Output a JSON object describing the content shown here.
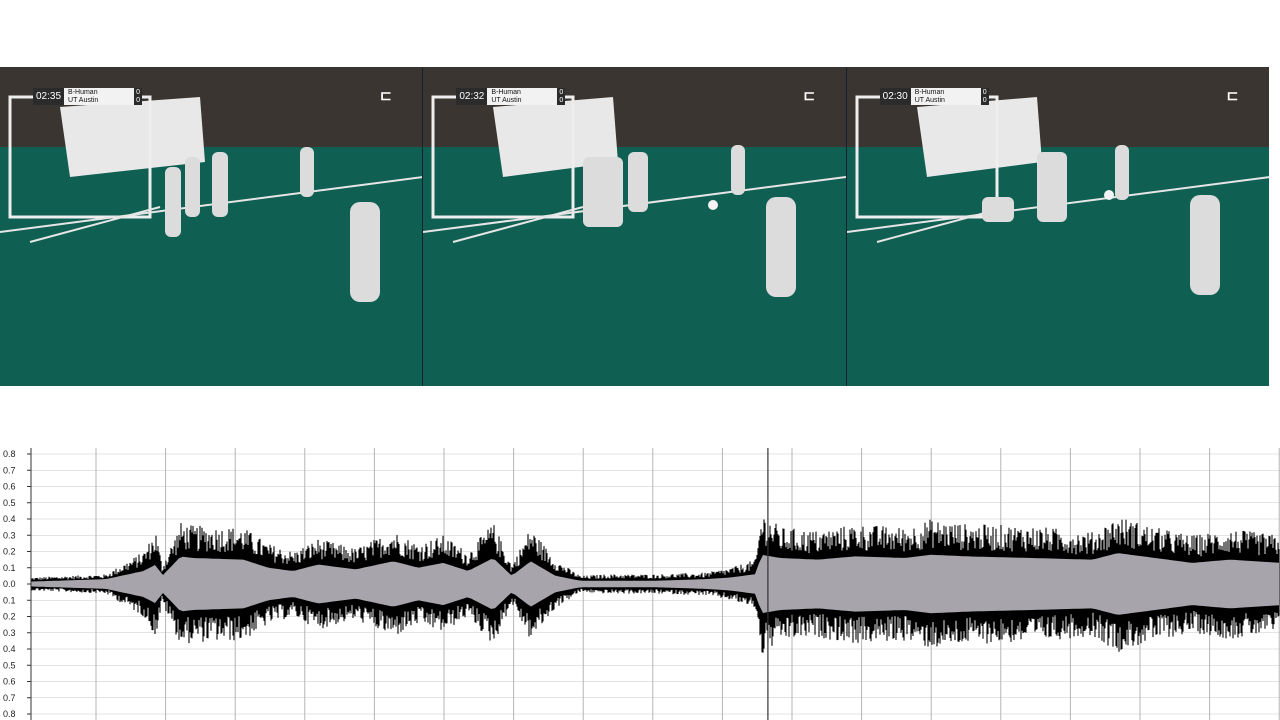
{
  "frames": [
    {
      "time": "02:35",
      "team_home": "B-Human",
      "team_away": "UT Austin",
      "score_home": "0",
      "score_away": "0"
    },
    {
      "time": "02:32",
      "team_home": "B-Human",
      "team_away": "UT Austin",
      "score_home": "0",
      "score_away": "0"
    },
    {
      "time": "02:30",
      "team_home": "B-Human",
      "team_away": "UT Austin",
      "score_home": "0",
      "score_away": "0"
    }
  ],
  "chart_data": {
    "type": "area",
    "yticks_top": [
      "0.8",
      "0.7",
      "0.6",
      "0.5",
      "0.4",
      "0.3",
      "0.2",
      "0.1",
      "0.0"
    ],
    "yticks_bottom": [
      "0.1",
      "0.2",
      "0.3",
      "0.4",
      "0.5",
      "0.6",
      "0.7",
      "0.8"
    ],
    "ylim": [
      -0.8,
      0.8
    ],
    "grid": true,
    "colors": {
      "peak": "#000000",
      "rms": "#a7a5ab",
      "grid": "#c8c8c8"
    },
    "envelope_x": [
      0,
      0.06,
      0.09,
      0.1,
      0.105,
      0.12,
      0.13,
      0.17,
      0.19,
      0.21,
      0.23,
      0.26,
      0.29,
      0.31,
      0.33,
      0.35,
      0.37,
      0.385,
      0.4,
      0.42,
      0.44,
      0.46,
      0.5,
      0.54,
      0.56,
      0.58,
      0.585,
      0.6,
      0.63,
      0.66,
      0.7,
      0.72,
      0.75,
      0.8,
      0.85,
      0.87,
      0.9,
      0.93,
      0.96,
      1
    ],
    "envelope_peak": [
      0.04,
      0.06,
      0.2,
      0.33,
      0.12,
      0.38,
      0.36,
      0.35,
      0.25,
      0.2,
      0.28,
      0.22,
      0.33,
      0.25,
      0.3,
      0.2,
      0.38,
      0.12,
      0.35,
      0.15,
      0.05,
      0.06,
      0.06,
      0.07,
      0.1,
      0.15,
      0.45,
      0.35,
      0.33,
      0.37,
      0.35,
      0.4,
      0.37,
      0.36,
      0.32,
      0.42,
      0.35,
      0.3,
      0.34,
      0.3
    ],
    "envelope_rms": [
      0.015,
      0.03,
      0.08,
      0.12,
      0.05,
      0.17,
      0.16,
      0.15,
      0.1,
      0.08,
      0.12,
      0.09,
      0.14,
      0.1,
      0.13,
      0.08,
      0.16,
      0.05,
      0.14,
      0.05,
      0.02,
      0.02,
      0.02,
      0.03,
      0.04,
      0.06,
      0.18,
      0.16,
      0.15,
      0.17,
      0.16,
      0.18,
      0.17,
      0.16,
      0.15,
      0.19,
      0.16,
      0.13,
      0.15,
      0.13
    ],
    "playhead": 0.59
  }
}
